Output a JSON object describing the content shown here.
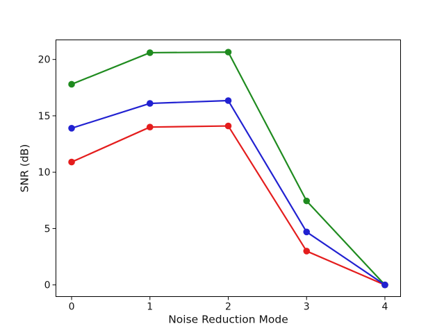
{
  "figure": {
    "background": "#ffffff",
    "axis_color": "#000000",
    "text_color": "#111111"
  },
  "chart_data": {
    "type": "line",
    "title": "",
    "xlabel": "Noise Reduction Mode",
    "ylabel": "SNR (dB)",
    "x": [
      0,
      1,
      2,
      3,
      4
    ],
    "series": [
      {
        "name": "red-series",
        "color": "#e41d1d",
        "marker": "o",
        "values": [
          10.9,
          14.0,
          14.1,
          3.0,
          0.0
        ]
      },
      {
        "name": "green-series",
        "color": "#1f8b1f",
        "marker": "o",
        "values": [
          17.8,
          20.6,
          20.65,
          7.45,
          0.0
        ]
      },
      {
        "name": "blue-series",
        "color": "#2121d1",
        "marker": "o",
        "values": [
          13.9,
          16.1,
          16.35,
          4.7,
          0.0
        ]
      }
    ],
    "xticks": {
      "values": [
        0,
        1,
        2,
        3,
        4
      ],
      "labels": [
        "0",
        "1",
        "2",
        "3",
        "4"
      ]
    },
    "yticks": {
      "values": [
        0,
        5,
        10,
        15,
        20
      ],
      "labels": [
        "0",
        "5",
        "10",
        "15",
        "20"
      ]
    },
    "xlim": [
      -0.2,
      4.2
    ],
    "ylim": [
      -1.035,
      21.735
    ],
    "grid": false,
    "legend": "none"
  }
}
